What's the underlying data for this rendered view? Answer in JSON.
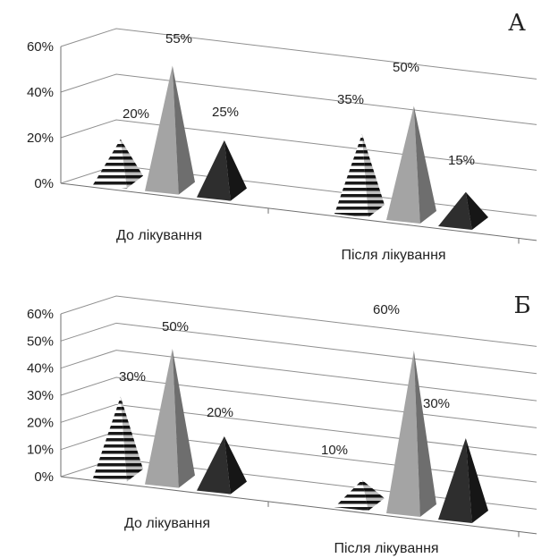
{
  "chart_data": [
    {
      "type": "bar",
      "panel_label": "А",
      "categories": [
        "До лікування",
        "Після лікування"
      ],
      "series": [
        {
          "values": [
            20,
            35
          ]
        },
        {
          "values": [
            55,
            50
          ]
        },
        {
          "values": [
            25,
            15
          ]
        }
      ],
      "data_labels": [
        [
          "20%",
          "55%",
          "25%"
        ],
        [
          "35%",
          "50%",
          "15%"
        ]
      ],
      "y_ticks": [
        "0%",
        "20%",
        "40%",
        "60%"
      ],
      "ylim": [
        0,
        60
      ],
      "grid": true,
      "shape": "pyramid-3d",
      "colors": [
        "#striped",
        "#9a9a9a",
        "#2a2a2a"
      ]
    },
    {
      "type": "bar",
      "panel_label": "Б",
      "categories": [
        "До лікування",
        "Після лікування"
      ],
      "series": [
        {
          "values": [
            30,
            10
          ]
        },
        {
          "values": [
            50,
            60
          ]
        },
        {
          "values": [
            20,
            30
          ]
        }
      ],
      "data_labels": [
        [
          "30%",
          "50%",
          "20%"
        ],
        [
          "10%",
          "60%",
          "30%"
        ]
      ],
      "y_ticks": [
        "0%",
        "10%",
        "20%",
        "30%",
        "40%",
        "50%",
        "60%"
      ],
      "ylim": [
        0,
        60
      ],
      "grid": true,
      "shape": "pyramid-3d",
      "colors": [
        "#striped",
        "#9a9a9a",
        "#2a2a2a"
      ]
    }
  ]
}
